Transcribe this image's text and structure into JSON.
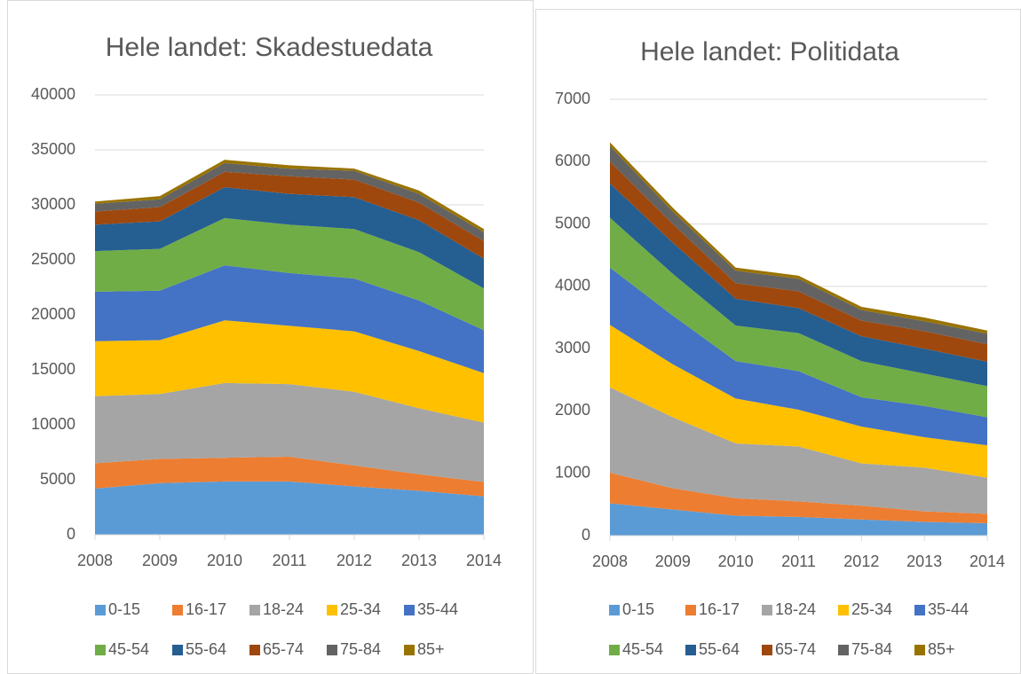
{
  "chart_data": [
    {
      "type": "stacked_area",
      "title": "Hele landet: Skadestuedata",
      "categories": [
        "2008",
        "2009",
        "2010",
        "2011",
        "2012",
        "2013",
        "2014"
      ],
      "ylim": [
        0,
        40000
      ],
      "yticks": [
        0,
        5000,
        10000,
        15000,
        20000,
        25000,
        30000,
        35000,
        40000
      ],
      "grid": true,
      "legend": "bottom",
      "series": [
        {
          "name": "0-15",
          "color": "#5b9bd5",
          "values": [
            4200,
            4700,
            4850,
            4850,
            4400,
            4000,
            3500
          ]
        },
        {
          "name": "16-17",
          "color": "#ed7d31",
          "values": [
            2300,
            2200,
            2150,
            2250,
            1900,
            1500,
            1300
          ]
        },
        {
          "name": "18-24",
          "color": "#a5a5a5",
          "values": [
            6100,
            5900,
            6800,
            6600,
            6700,
            6000,
            5400
          ]
        },
        {
          "name": "25-34",
          "color": "#ffc000",
          "values": [
            5000,
            4900,
            5700,
            5300,
            5500,
            5200,
            4500
          ]
        },
        {
          "name": "35-44",
          "color": "#4472c4",
          "values": [
            4500,
            4500,
            5000,
            4800,
            4800,
            4600,
            3900
          ]
        },
        {
          "name": "45-54",
          "color": "#70ad47",
          "values": [
            3700,
            3800,
            4300,
            4400,
            4500,
            4400,
            3800
          ]
        },
        {
          "name": "55-64",
          "color": "#255e91",
          "values": [
            2400,
            2500,
            2800,
            2800,
            2900,
            2900,
            2700
          ]
        },
        {
          "name": "65-74",
          "color": "#9e480e",
          "values": [
            1200,
            1300,
            1400,
            1600,
            1600,
            1600,
            1600
          ]
        },
        {
          "name": "75-84",
          "color": "#636363",
          "values": [
            700,
            700,
            800,
            700,
            800,
            800,
            800
          ]
        },
        {
          "name": "85+",
          "color": "#997300",
          "values": [
            200,
            300,
            300,
            300,
            200,
            300,
            300
          ]
        }
      ]
    },
    {
      "type": "stacked_area",
      "title": "Hele landet: Politidata",
      "categories": [
        "2008",
        "2009",
        "2010",
        "2011",
        "2012",
        "2013",
        "2014"
      ],
      "ylim": [
        0,
        7000
      ],
      "yticks": [
        0,
        1000,
        2000,
        3000,
        4000,
        5000,
        6000,
        7000
      ],
      "grid": true,
      "legend": "bottom",
      "series": [
        {
          "name": "0-15",
          "color": "#5b9bd5",
          "values": [
            520,
            420,
            320,
            300,
            260,
            220,
            200
          ]
        },
        {
          "name": "16-17",
          "color": "#ed7d31",
          "values": [
            490,
            340,
            280,
            250,
            220,
            170,
            150
          ]
        },
        {
          "name": "18-24",
          "color": "#a5a5a5",
          "values": [
            1370,
            1140,
            880,
            880,
            680,
            700,
            580
          ]
        },
        {
          "name": "25-34",
          "color": "#ffc000",
          "values": [
            1000,
            850,
            720,
            590,
            590,
            490,
            520
          ]
        },
        {
          "name": "35-44",
          "color": "#4472c4",
          "values": [
            920,
            780,
            600,
            620,
            470,
            500,
            450
          ]
        },
        {
          "name": "45-54",
          "color": "#70ad47",
          "values": [
            800,
            670,
            570,
            610,
            580,
            520,
            500
          ]
        },
        {
          "name": "55-64",
          "color": "#255e91",
          "values": [
            550,
            500,
            430,
            400,
            400,
            400,
            390
          ]
        },
        {
          "name": "65-74",
          "color": "#9e480e",
          "values": [
            350,
            300,
            250,
            270,
            250,
            280,
            280
          ]
        },
        {
          "name": "75-84",
          "color": "#636363",
          "values": [
            250,
            200,
            200,
            200,
            170,
            160,
            170
          ]
        },
        {
          "name": "85+",
          "color": "#997300",
          "values": [
            60,
            60,
            50,
            50,
            50,
            60,
            50
          ]
        }
      ]
    }
  ]
}
